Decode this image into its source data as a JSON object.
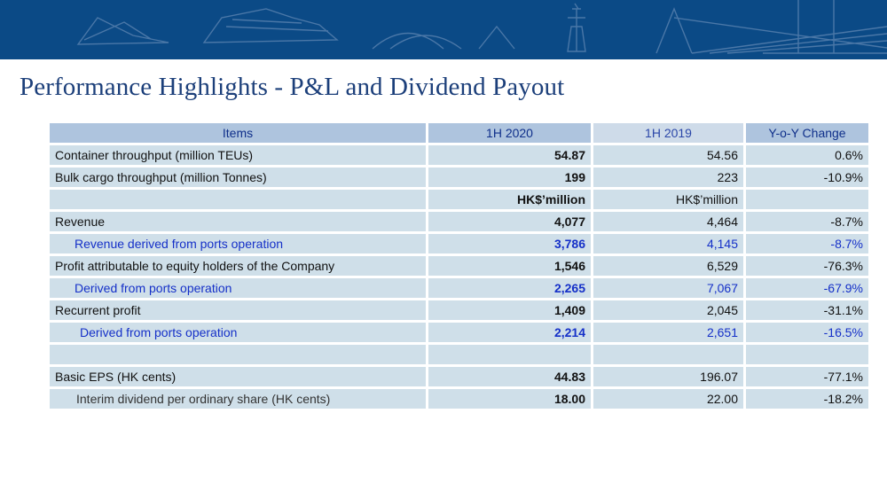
{
  "title": "Performance Highlights - P&L and Dividend Payout",
  "table": {
    "headers": {
      "items": "Items",
      "cur": "1H 2020",
      "prev": "1H 2019",
      "yoy": "Y-o-Y Change"
    },
    "rows": [
      {
        "item": "Container throughput (million TEUs)",
        "cur": "54.87",
        "prev": "54.56",
        "yoy": "0.6%"
      },
      {
        "item": "Bulk cargo throughput (million Tonnes)",
        "cur": "199",
        "prev": "223",
        "yoy": "-10.9%"
      },
      {
        "item": "",
        "cur": "HK$’million",
        "prev": "HK$’million",
        "yoy": ""
      },
      {
        "item": "Revenue",
        "cur": "4,077",
        "prev": "4,464",
        "yoy": "-8.7%"
      },
      {
        "item": "Revenue derived from ports operation",
        "cur": "3,786",
        "prev": "4,145",
        "yoy": "-8.7%"
      },
      {
        "item": "Profit attributable to equity holders of the Company",
        "cur": "1,546",
        "prev": "6,529",
        "yoy": "-76.3%"
      },
      {
        "item": "Derived from ports operation",
        "cur": "2,265",
        "prev": "7,067",
        "yoy": "-67.9%"
      },
      {
        "item": "Recurrent profit",
        "cur": "1,409",
        "prev": "2,045",
        "yoy": "-31.1%"
      },
      {
        "item": "Derived from ports operation",
        "cur": "2,214",
        "prev": "2,651",
        "yoy": "-16.5%"
      },
      {
        "item": "",
        "cur": "",
        "prev": "",
        "yoy": ""
      },
      {
        "item": "Basic EPS (HK cents)",
        "cur": "44.83",
        "prev": "196.07",
        "yoy": "-77.1%"
      },
      {
        "item": "Interim dividend per ordinary share (HK cents)",
        "cur": "18.00",
        "prev": "22.00",
        "yoy": "-18.2%"
      }
    ]
  }
}
